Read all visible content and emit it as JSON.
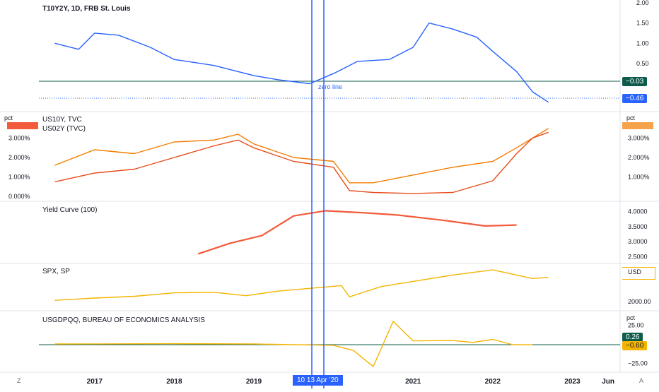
{
  "colors": {
    "t10y2y": "#2962ff",
    "us10y": "#f57c00",
    "us02y": "#e84c1a",
    "yield_curve": "#f25b3b",
    "spx": "#f4b400",
    "gdp": "#f4b400",
    "zero_line": "#0d5c4b",
    "cursor": "#2962ff",
    "divider": "#e0e3eb"
  },
  "top_pane": {
    "title": "T10Y2Y, 1D, FRB St. Louis",
    "zero_line_label": "zero line",
    "tag_zero": "−0.03",
    "tag_last": "−0.46"
  },
  "pane2": {
    "series_labels": [
      "US10Y, TVC",
      "US02Y (TVC)"
    ],
    "unit_left": "pct",
    "unit_right": "pct"
  },
  "pane3": {
    "title": "Yield Curve (100)"
  },
  "pane4": {
    "title": "SPX, SP",
    "unit_right": "USD"
  },
  "pane5": {
    "title": "USGDPQQ, BUREAU OF ECONOMICS ANALYSIS",
    "unit_right": "pct",
    "tag_a": "0.26",
    "tag_b": "−0.60"
  },
  "time_axis": {
    "cursor_label": "10   13 Apr '20",
    "left_corner": "Z",
    "right_corner": "A"
  },
  "chart_data": [
    {
      "type": "line",
      "title": "T10Y2Y, 1D, FRB St. Louis",
      "y_ticks": [
        "2.00",
        "1.50",
        "1.00",
        "0.50"
      ],
      "ylim": [
        -0.55,
        2.0
      ],
      "series": [
        {
          "name": "T10Y2Y",
          "x": [
            2016.5,
            2016.8,
            2017.0,
            2017.3,
            2017.7,
            2018.0,
            2018.5,
            2019.0,
            2019.3,
            2019.7,
            2020.0,
            2020.3,
            2020.7,
            2021.0,
            2021.2,
            2021.5,
            2021.8,
            2022.0,
            2022.3,
            2022.5,
            2022.7
          ],
          "values": [
            1.0,
            0.85,
            1.25,
            1.2,
            0.9,
            0.6,
            0.45,
            0.2,
            0.1,
            0.0,
            0.25,
            0.55,
            0.6,
            0.9,
            1.5,
            1.35,
            1.15,
            0.8,
            0.3,
            -0.2,
            -0.46
          ]
        }
      ]
    },
    {
      "type": "line",
      "series_names": [
        "US10Y, TVC",
        "US02Y (TVC)"
      ],
      "y_ticks_left": [
        "3.000%",
        "2.000%",
        "1.000%",
        "0.000%"
      ],
      "y_ticks_right": [
        "3.000%",
        "2.000%",
        "1.000%"
      ],
      "ylim": [
        0,
        4.0
      ],
      "x": [
        2016.5,
        2017.0,
        2017.5,
        2018.0,
        2018.5,
        2018.8,
        2019.0,
        2019.5,
        2020.0,
        2020.2,
        2020.5,
        2021.0,
        2021.5,
        2022.0,
        2022.3,
        2022.5,
        2022.7
      ],
      "series": [
        {
          "name": "US10Y, TVC",
          "values": [
            1.6,
            2.4,
            2.2,
            2.8,
            2.9,
            3.2,
            2.7,
            2.0,
            1.8,
            0.7,
            0.7,
            1.1,
            1.5,
            1.8,
            2.5,
            3.0,
            3.5
          ]
        },
        {
          "name": "US02Y (TVC)",
          "values": [
            0.75,
            1.2,
            1.4,
            2.0,
            2.6,
            2.9,
            2.5,
            1.8,
            1.5,
            0.3,
            0.2,
            0.15,
            0.2,
            0.8,
            2.2,
            3.0,
            3.3
          ]
        }
      ]
    },
    {
      "type": "line",
      "title": "Yield Curve (100)",
      "y_ticks": [
        "4.0000",
        "3.5000",
        "3.0000",
        "2.5000"
      ],
      "ylim": [
        2.4,
        4.1
      ],
      "x": [
        2018.3,
        2018.7,
        2019.1,
        2019.5,
        2019.9,
        2020.4,
        2020.8,
        2021.4,
        2021.9,
        2022.3
      ],
      "series": [
        {
          "name": "Yield Curve (100)",
          "values": [
            2.6,
            2.95,
            3.2,
            3.85,
            4.02,
            3.95,
            3.88,
            3.7,
            3.52,
            3.55
          ]
        }
      ]
    },
    {
      "type": "line",
      "title": "SPX, SP",
      "y_ticks": [
        "2000.00"
      ],
      "ylim": [
        1500,
        5000
      ],
      "x": [
        2016.5,
        2017.0,
        2017.5,
        2018.0,
        2018.5,
        2018.9,
        2019.3,
        2019.8,
        2020.1,
        2020.2,
        2020.6,
        2021.0,
        2021.5,
        2022.0,
        2022.3,
        2022.5,
        2022.7
      ],
      "series": [
        {
          "name": "SPX, SP",
          "values": [
            2100,
            2300,
            2450,
            2750,
            2800,
            2500,
            2900,
            3200,
            3380,
            2400,
            3300,
            3750,
            4300,
            4750,
            4300,
            4000,
            4100
          ]
        }
      ]
    },
    {
      "type": "line",
      "title": "USGDPQQ, BUREAU OF ECONOMICS ANALYSIS",
      "y_ticks": [
        "25.00",
        "−25.00"
      ],
      "ylim": [
        -30,
        30
      ],
      "x": [
        2016.5,
        2017.0,
        2018.0,
        2019.0,
        2020.0,
        2020.25,
        2020.5,
        2020.75,
        2021.0,
        2021.5,
        2021.75,
        2022.0,
        2022.25,
        2022.5
      ],
      "series": [
        {
          "name": "USGDPQQ",
          "values": [
            0.5,
            0.6,
            0.8,
            0.5,
            -1.3,
            -8.0,
            -29.0,
            30.0,
            4.5,
            5.0,
            2.5,
            6.5,
            -0.5,
            -0.6
          ]
        }
      ]
    }
  ],
  "x_ticks": [
    "2017",
    "2018",
    "2019",
    "2021",
    "2022",
    "2023",
    "Jun"
  ]
}
